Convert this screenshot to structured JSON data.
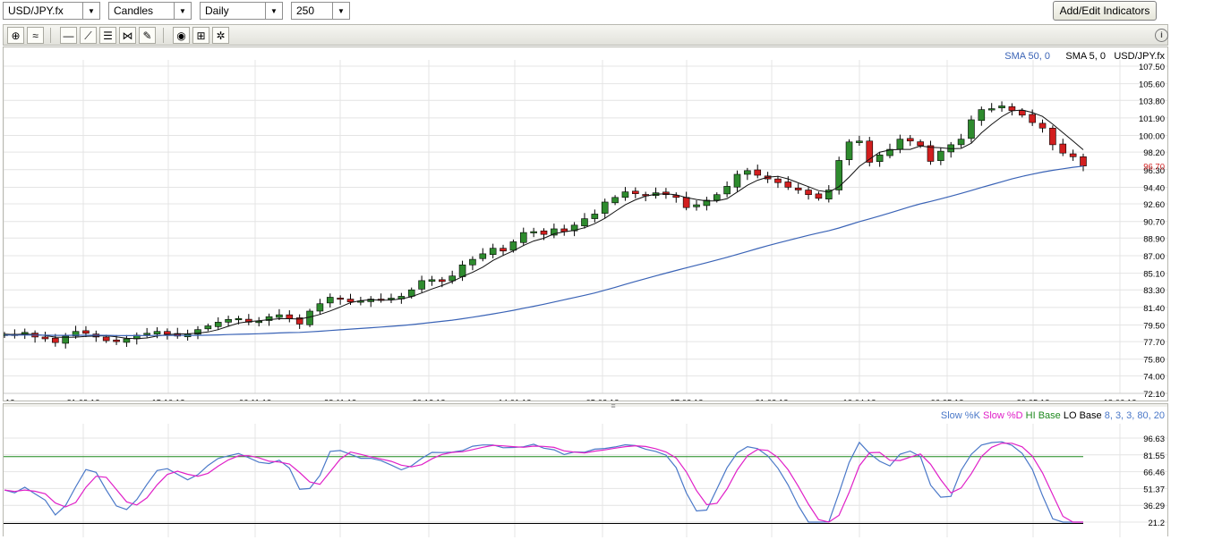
{
  "toolbar_top": {
    "symbol": "USD/JPY.fx",
    "chart_type": "Candles",
    "period": "Daily",
    "bars": "250",
    "add_indicators_label": "Add/Edit Indicators"
  },
  "tools": [
    {
      "name": "crosshair-icon",
      "glyph": "⊕"
    },
    {
      "name": "overlay-icon",
      "glyph": "≈"
    },
    {
      "name": "horizontal-line-icon",
      "glyph": "—"
    },
    {
      "name": "trend-line-icon",
      "glyph": "⟋"
    },
    {
      "name": "fibonacci-icon",
      "glyph": "☰"
    },
    {
      "name": "gann-icon",
      "glyph": "⋈"
    },
    {
      "name": "eraser-icon",
      "glyph": "✎"
    },
    {
      "name": "snapshot-icon",
      "glyph": "◉"
    },
    {
      "name": "add-window-icon",
      "glyph": "⊞"
    },
    {
      "name": "settings-icon",
      "glyph": "✲"
    }
  ],
  "info_glyph": "i",
  "main_legend": {
    "sma50": "SMA 50, 0",
    "sma5": "SMA 5, 0",
    "symbol": "USD/JPY.fx"
  },
  "colors": {
    "sma50": "#3a63b6",
    "sma5": "#111111",
    "up": "#2e8b2e",
    "down": "#d21f1f",
    "k": "#4a78c8",
    "d": "#e020c8",
    "hi": "#1f8a1f",
    "lo": "#000000"
  },
  "price_axis": [
    "107.50",
    "105.60",
    "103.80",
    "101.90",
    "100.00",
    "98.20",
    "96.30",
    "94.40",
    "92.60",
    "90.70",
    "88.90",
    "87.00",
    "85.10",
    "83.30",
    "81.40",
    "79.50",
    "77.70",
    "75.80",
    "74.00",
    "72.10"
  ],
  "last_price": "96.70",
  "date_axis": [
    "12",
    "21.09.12",
    "15.10.12",
    "06.11.12",
    "28.11.12",
    "20.12.12",
    "14.01.13",
    "05.02.13",
    "27.02.13",
    "21.03.13",
    "12.04.13",
    "06.05.13",
    "29.05.13",
    "18.06.13"
  ],
  "osc_legend": {
    "k": "Slow %K",
    "d": "Slow %D",
    "hi": "HI Base",
    "lo": "LO Base",
    "params": "8, 3, 3, 80, 20"
  },
  "osc_axis": [
    "96.63",
    "81.55",
    "66.46",
    "51.37",
    "36.29",
    "21.2"
  ],
  "chart_data": {
    "type": "candlestick",
    "ylim": [
      72.1,
      107.5
    ],
    "closes": [
      78.5,
      78.4,
      78.7,
      78.2,
      78.0,
      77.6,
      78.3,
      78.8,
      78.6,
      78.2,
      77.8,
      77.7,
      78.0,
      78.4,
      78.6,
      78.8,
      78.5,
      78.3,
      78.5,
      79.0,
      79.4,
      79.8,
      80.1,
      80.2,
      79.8,
      79.9,
      80.4,
      80.6,
      80.2,
      79.6,
      81.0,
      81.8,
      82.5,
      82.3,
      82.0,
      82.1,
      82.3,
      82.2,
      82.4,
      82.6,
      83.3,
      84.3,
      84.4,
      84.2,
      84.8,
      86.0,
      86.6,
      87.2,
      87.8,
      87.5,
      88.5,
      89.5,
      89.6,
      89.3,
      89.9,
      89.6,
      90.3,
      91.0,
      91.5,
      92.8,
      93.3,
      93.9,
      93.7,
      93.5,
      93.8,
      93.6,
      93.3,
      92.2,
      92.5,
      93.0,
      93.6,
      94.5,
      95.8,
      96.2,
      95.7,
      95.3,
      94.9,
      94.4,
      94.1,
      93.6,
      93.2,
      94.1,
      97.3,
      99.3,
      99.4,
      97.1,
      97.9,
      98.5,
      99.6,
      99.4,
      98.9,
      97.2,
      98.3,
      99.0,
      99.6,
      101.7,
      102.8,
      102.9,
      103.2,
      102.7,
      102.2,
      101.4,
      100.8,
      99.0,
      98.1,
      97.7,
      96.7
    ],
    "sma50_start": 78.4,
    "osc_ylim": [
      21.2,
      96.63
    ],
    "hi_base": 80,
    "lo_base": 20
  }
}
